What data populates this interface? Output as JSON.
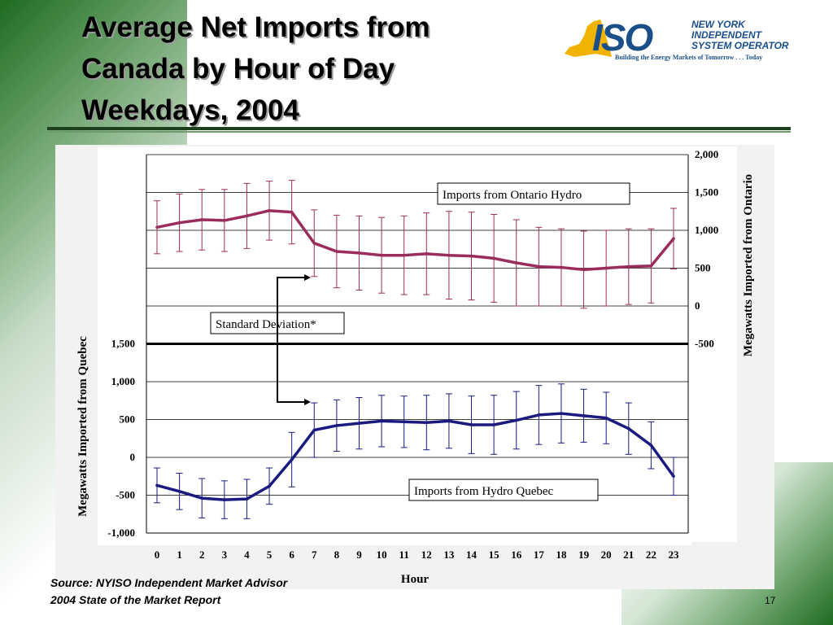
{
  "slide": {
    "title_lines": [
      "Average Net Imports from",
      "Canada by Hour of Day",
      "Weekdays, 2004"
    ],
    "source_lines": [
      "Source: NYISO Independent Market Advisor",
      "2004 State of the Market Report"
    ],
    "page_number": "17"
  },
  "logo": {
    "mark_text": "ISO",
    "name_lines": [
      "NEW YORK",
      "INDEPENDENT",
      "SYSTEM OPERATOR"
    ],
    "tagline": "Building the Energy Markets of Tomorrow . . . Today",
    "colors": {
      "state": "#f0b400",
      "mark": "#1a4f8a",
      "text": "#1a4f8a"
    }
  },
  "chart_data": {
    "type": "line",
    "title": "",
    "xlabel": "Hour",
    "x": [
      0,
      1,
      2,
      3,
      4,
      5,
      6,
      7,
      8,
      9,
      10,
      11,
      12,
      13,
      14,
      15,
      16,
      17,
      18,
      19,
      20,
      21,
      22,
      23
    ],
    "grid": true,
    "legend": "none",
    "annotations": [
      "Imports from Ontario Hydro",
      "Imports from Hydro Quebec",
      "Standard Deviation*"
    ],
    "right_axis": {
      "label": "Megawatts Imported from Ontario",
      "ticks": [
        "2,000",
        "1,500",
        "1,000",
        "500",
        "0",
        "-500"
      ],
      "range": [
        -500,
        2000
      ]
    },
    "left_axis": {
      "label": "Megawatts Imported from Quebec",
      "ticks": [
        "1,500",
        "1,000",
        "500",
        "0",
        "-500",
        "-1,000"
      ],
      "range": [
        -1000,
        1500
      ]
    },
    "series": [
      {
        "name": "Imports from Ontario Hydro",
        "axis": "right",
        "color": "#9b2d5c",
        "values": [
          1040,
          1100,
          1140,
          1130,
          1190,
          1260,
          1240,
          830,
          720,
          700,
          670,
          670,
          690,
          670,
          660,
          630,
          570,
          520,
          510,
          480,
          500,
          520,
          530,
          890
        ],
        "std": [
          350,
          380,
          400,
          410,
          430,
          390,
          420,
          440,
          480,
          490,
          500,
          520,
          540,
          580,
          580,
          580,
          570,
          520,
          510,
          510,
          500,
          500,
          490,
          400
        ]
      },
      {
        "name": "Imports from Hydro Quebec",
        "axis": "left",
        "color": "#1a1a80",
        "values": [
          -370,
          -450,
          -540,
          -560,
          -550,
          -380,
          -30,
          360,
          420,
          450,
          480,
          470,
          460,
          480,
          430,
          430,
          490,
          560,
          580,
          550,
          520,
          380,
          160,
          -250
        ],
        "std": [
          230,
          240,
          260,
          250,
          260,
          240,
          360,
          360,
          340,
          340,
          340,
          340,
          360,
          360,
          380,
          390,
          380,
          390,
          390,
          350,
          340,
          340,
          310,
          250
        ]
      }
    ]
  }
}
